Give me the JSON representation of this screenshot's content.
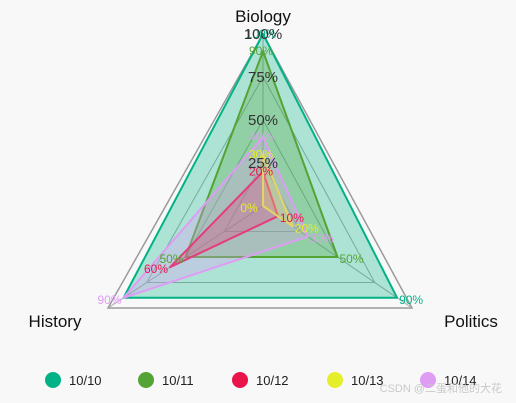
{
  "chart_data": {
    "type": "radar",
    "axes": [
      "Biology",
      "Politics",
      "History"
    ],
    "grid_ticks": [
      "25%",
      "50%",
      "75%",
      "100%"
    ],
    "max": 100,
    "series": [
      {
        "name": "10/10",
        "color": "#00b386",
        "values": [
          100,
          90,
          90
        ],
        "labels": [
          "100%",
          "90%",
          ""
        ]
      },
      {
        "name": "10/11",
        "color": "#53a335",
        "values": [
          90,
          50,
          50
        ],
        "labels": [
          "90%",
          "50%",
          "50%"
        ]
      },
      {
        "name": "10/12",
        "color": "#e8144a",
        "values": [
          20,
          10,
          60
        ],
        "labels": [
          "20%",
          "10%",
          "60%"
        ]
      },
      {
        "name": "10/13",
        "color": "#e4ee2a",
        "values": [
          30,
          20,
          0
        ],
        "labels": [
          "30%",
          "20%",
          "0%"
        ]
      },
      {
        "name": "10/14",
        "color": "#df9cf5",
        "values": [
          40,
          30,
          90
        ],
        "labels": [
          "40%",
          "30%",
          "90%"
        ]
      }
    ]
  },
  "watermark": "CSDN @二蛋和他的大花"
}
